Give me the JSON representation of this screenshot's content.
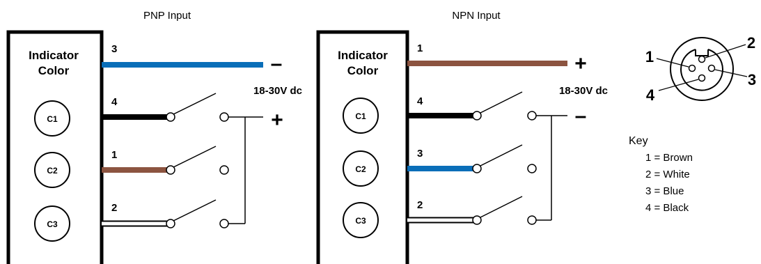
{
  "pnp": {
    "title": "PNP Input",
    "box_label_1": "Indicator",
    "box_label_2": "Color",
    "channels": [
      "C1",
      "C2",
      "C3"
    ],
    "supply_wire": "3",
    "channel_wires": [
      "4",
      "1",
      "2"
    ],
    "voltage": "18-30V dc",
    "top_sign": "–",
    "bottom_sign": "+"
  },
  "npn": {
    "title": "NPN Input",
    "box_label_1": "Indicator",
    "box_label_2": "Color",
    "channels": [
      "C1",
      "C2",
      "C3"
    ],
    "supply_wire": "1",
    "channel_wires": [
      "4",
      "3",
      "2"
    ],
    "voltage": "18-30V dc",
    "top_sign": "+",
    "bottom_sign": "–"
  },
  "connector": {
    "pin_labels": [
      "1",
      "2",
      "3",
      "4"
    ]
  },
  "key": {
    "title": "Key",
    "items": [
      "1 = Brown",
      "2 = White",
      "3 = Blue",
      "4 = Black"
    ]
  },
  "colors": {
    "brown": "#8c5440",
    "blue": "#0a6eb8",
    "black": "#000000",
    "white": "#ffffff"
  }
}
